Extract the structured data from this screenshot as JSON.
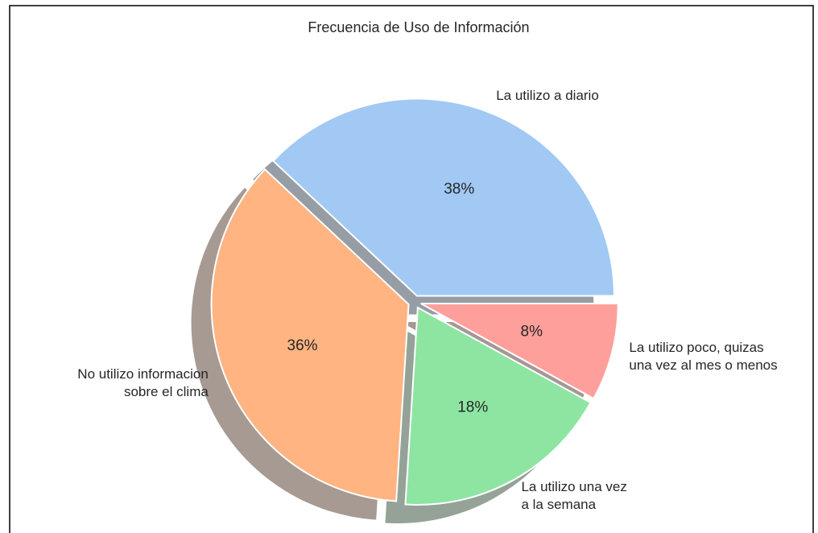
{
  "chart_data": {
    "type": "pie",
    "title": "Frecuencia de Uso de Información",
    "categories": [
      "La utilizo a diario",
      "No utilizo informacion\nsobre el clima",
      "La utilizo una vez\na la semana",
      "La utilizo poco, quizas\nuna vez al mes o menos"
    ],
    "values": [
      38,
      36,
      18,
      8
    ],
    "value_labels": [
      "38%",
      "36%",
      "18%",
      "8%"
    ],
    "colors": [
      "#a1c9f4",
      "#ffb482",
      "#8de5a1",
      "#ff9f9b"
    ],
    "shadow": true
  }
}
